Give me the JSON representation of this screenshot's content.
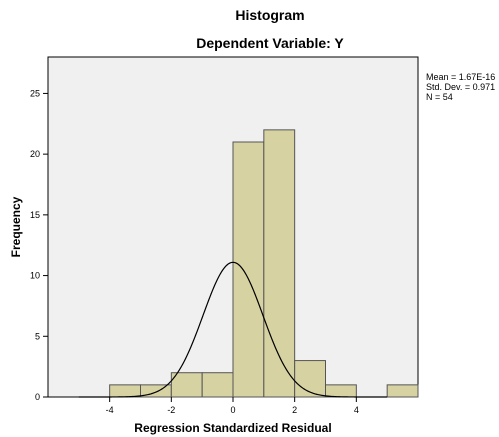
{
  "chart_data": {
    "type": "bar",
    "title": "Histogram",
    "subtitle": "Dependent Variable: Y",
    "xlabel": "Regression Standardized Residual",
    "ylabel": "Frequency",
    "xlim": [
      -6,
      6
    ],
    "ylim": [
      0,
      28
    ],
    "xticks": [
      "-4",
      "-2",
      "0",
      "2",
      "4"
    ],
    "xtick_values": [
      -4,
      -2,
      0,
      2,
      4
    ],
    "yticks": [
      "0",
      "5",
      "10",
      "15",
      "20",
      "25"
    ],
    "ytick_values": [
      0,
      5,
      10,
      15,
      20,
      25
    ],
    "bins": [
      {
        "start": -4.0,
        "end": -3.0,
        "count": 1
      },
      {
        "start": -3.0,
        "end": -2.0,
        "count": 1
      },
      {
        "start": -2.0,
        "end": -1.0,
        "count": 2
      },
      {
        "start": -1.0,
        "end": -0.0,
        "count": 2
      },
      {
        "start": -0.0,
        "end": 1.0,
        "count": 21
      },
      {
        "start": 1.0,
        "end": 2.0,
        "count": 22
      },
      {
        "start": 2.0,
        "end": 3.0,
        "count": 3
      },
      {
        "start": 3.0,
        "end": 4.0,
        "count": 1
      },
      {
        "start": 5.0,
        "end": 6.0,
        "count": 1
      }
    ],
    "normal_curve": {
      "mean": 1.67e-16,
      "sd": 0.971,
      "n": 54
    },
    "stats_text": [
      "Mean = 1.67E-16",
      "Std. Dev. = 0.971",
      "N = 54"
    ],
    "colors": {
      "bar_fill": "#d6d2a2",
      "bar_stroke": "#555555",
      "plot_bg": "#f0f0f0",
      "curve": "#000000"
    }
  }
}
